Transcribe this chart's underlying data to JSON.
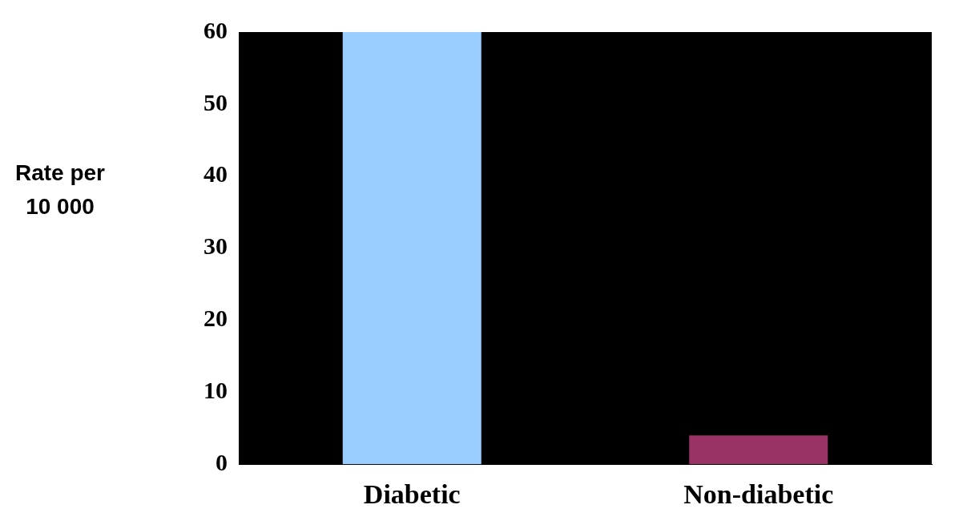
{
  "chart_data": {
    "type": "bar",
    "ylabel": "Rate per 10 000",
    "categories": [
      "Diabetic",
      "Non-diabetic"
    ],
    "values": [
      60,
      4
    ],
    "colors": [
      "#99ccff",
      "#993366"
    ],
    "ylim": [
      0,
      60
    ],
    "yticks": [
      0,
      10,
      20,
      30,
      40,
      50,
      60
    ],
    "grid": false,
    "legend": false
  }
}
